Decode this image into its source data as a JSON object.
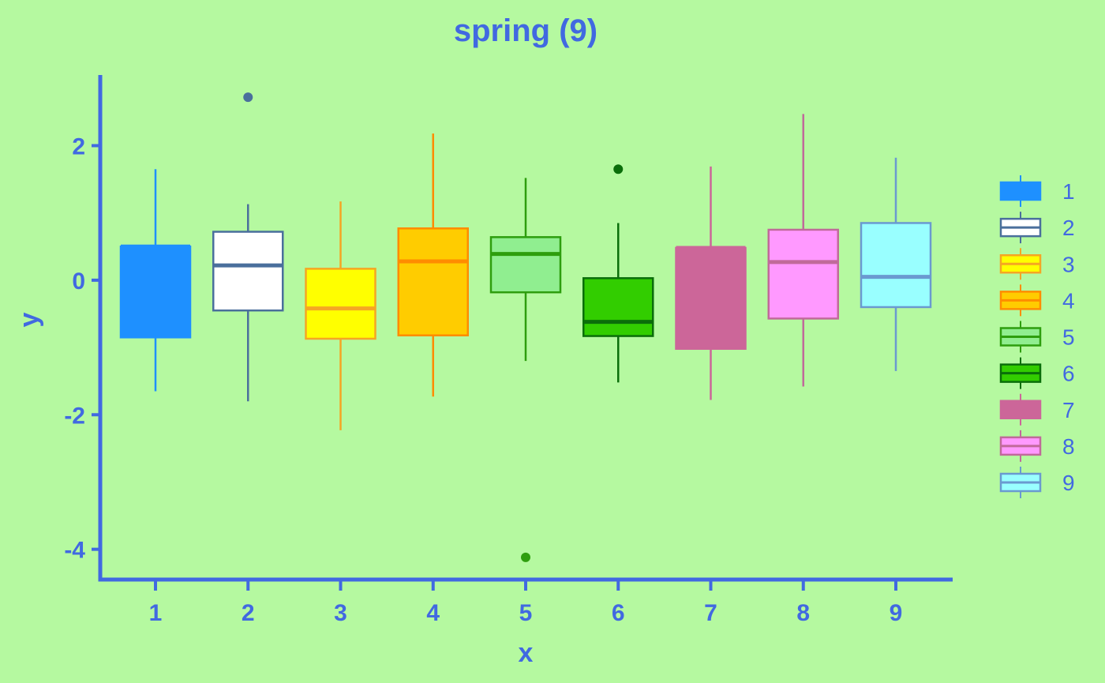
{
  "chart_data": {
    "type": "box",
    "title": "spring (9)",
    "xlabel": "x",
    "ylabel": "y",
    "ylim": [
      -4.45,
      3.05
    ],
    "y_ticks": [
      2,
      0,
      -2,
      -4
    ],
    "y_tick_labels": [
      "2",
      "0",
      "-2",
      "-4"
    ],
    "categories": [
      "1",
      "2",
      "3",
      "4",
      "5",
      "6",
      "7",
      "8",
      "9"
    ],
    "legend_position": "right",
    "grid": false,
    "boxes": [
      {
        "name": "1",
        "q1": -0.85,
        "median": 0.5,
        "q3": 0.5,
        "whisker_low": -1.65,
        "whisker_high": 1.65,
        "outliers": [],
        "fill": "#1e90ff",
        "stroke": "#1e90ff"
      },
      {
        "name": "2",
        "q1": -0.45,
        "median": 0.22,
        "q3": 0.72,
        "whisker_low": -1.8,
        "whisker_high": 1.13,
        "outliers": [
          2.72
        ],
        "fill": "#ffffff",
        "stroke": "#4a6f9c"
      },
      {
        "name": "3",
        "q1": -0.87,
        "median": -0.42,
        "q3": 0.17,
        "whisker_low": -2.23,
        "whisker_high": 1.17,
        "outliers": [],
        "fill": "#ffff00",
        "stroke": "#f5a623"
      },
      {
        "name": "4",
        "q1": -0.82,
        "median": 0.28,
        "q3": 0.77,
        "whisker_low": -1.73,
        "whisker_high": 2.18,
        "outliers": [],
        "fill": "#ffcc00",
        "stroke": "#ff8c00"
      },
      {
        "name": "5",
        "q1": -0.18,
        "median": 0.39,
        "q3": 0.64,
        "whisker_low": -1.2,
        "whisker_high": 1.52,
        "outliers": [
          -4.12
        ],
        "fill": "#90ee90",
        "stroke": "#2e9e0e"
      },
      {
        "name": "6",
        "q1": -0.83,
        "median": -0.62,
        "q3": 0.03,
        "whisker_low": -1.52,
        "whisker_high": 0.85,
        "outliers": [
          1.65
        ],
        "fill": "#32cd00",
        "stroke": "#0a6e0a"
      },
      {
        "name": "7",
        "q1": -1.02,
        "median": 0.48,
        "q3": 0.48,
        "whisker_low": -1.78,
        "whisker_high": 1.69,
        "outliers": [],
        "fill": "#cc6699",
        "stroke": "#cc6699"
      },
      {
        "name": "8",
        "q1": -0.57,
        "median": 0.27,
        "q3": 0.75,
        "whisker_low": -1.58,
        "whisker_high": 2.47,
        "outliers": [],
        "fill": "#ff99ff",
        "stroke": "#c06a9a"
      },
      {
        "name": "9",
        "q1": -0.4,
        "median": 0.05,
        "q3": 0.85,
        "whisker_low": -1.35,
        "whisker_high": 1.82,
        "outliers": [],
        "fill": "#99ffff",
        "stroke": "#6a9ad0"
      }
    ]
  },
  "colors": {
    "background": "#b5f9a0",
    "axis": "#4169e1",
    "text": "#4169e1"
  }
}
